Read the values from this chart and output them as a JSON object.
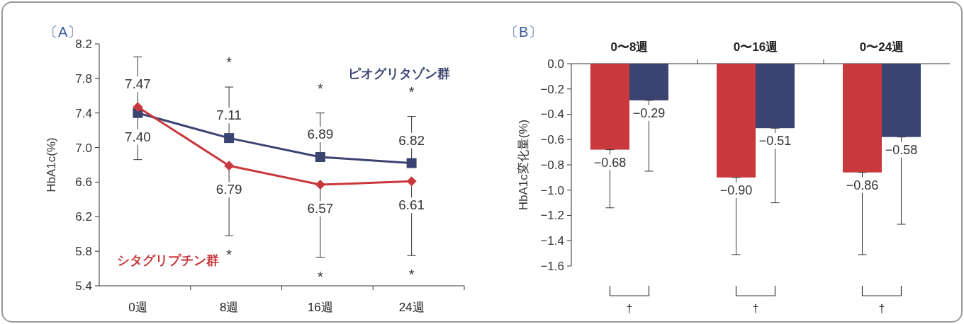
{
  "chart_data": [
    {
      "type": "line",
      "title": "〔A〕",
      "ylabel": "HbA1c(%)",
      "categories": [
        "0週",
        "8週",
        "16週",
        "24週"
      ],
      "ylim": [
        5.4,
        8.2
      ],
      "yticks": [
        5.4,
        5.8,
        6.2,
        6.6,
        {
          "value": 7,
          "label": "7.0"
        },
        7.4,
        7.8,
        8.2
      ],
      "grid": false,
      "legend": false,
      "series": [
        {
          "name": "ピオグリタゾン群",
          "color": "#3b4370",
          "marker": "square",
          "values": [
            7.4,
            7.11,
            6.89,
            6.82
          ],
          "value_labels": [
            "7.40",
            "7.11",
            "6.89",
            "6.82"
          ],
          "errors": [
            [
              7.4,
              8.05
            ],
            [
              7.11,
              7.7
            ],
            [
              6.89,
              7.4
            ],
            [
              6.82,
              7.36
            ]
          ]
        },
        {
          "name": "シタグリプチン群",
          "color": "#c8383c",
          "marker": "diamond",
          "values": [
            7.47,
            6.79,
            6.57,
            6.61
          ],
          "value_labels": [
            "7.47",
            "6.79",
            "6.57",
            "6.61"
          ],
          "errors": [
            [
              6.86,
              7.47
            ],
            [
              5.98,
              6.79
            ],
            [
              5.73,
              6.57
            ],
            [
              5.75,
              6.61
            ]
          ]
        }
      ],
      "annotations": [
        "*",
        "*",
        "*",
        "*",
        "*",
        "*"
      ]
    },
    {
      "type": "bar",
      "title": "〔B〕",
      "ylabel": "HbA1c変化量(%)",
      "categories": [
        "0〜8週",
        "0〜16週",
        "0〜24週"
      ],
      "ylim": [
        -1.6,
        0
      ],
      "yticks": [
        {
          "value": -1.6,
          "label": "−1.6"
        },
        {
          "value": -1.4,
          "label": "−1.4"
        },
        {
          "value": -1.2,
          "label": "−1.2"
        },
        {
          "value": -1.0,
          "label": "−1.0"
        },
        {
          "value": -0.8,
          "label": "−0.8"
        },
        {
          "value": -0.6,
          "label": "−0.6"
        },
        {
          "value": -0.4,
          "label": "−0.4"
        },
        {
          "value": -0.2,
          "label": "−0.2"
        },
        {
          "value": 0,
          "label": "0.0"
        }
      ],
      "grid": false,
      "legend": false,
      "series": [
        {
          "color": "#c8383c",
          "values": [
            -0.68,
            -0.9,
            -0.86
          ],
          "value_labels": [
            "−0.68",
            "−0.90",
            "−0.86"
          ],
          "errors": [
            [
              -1.14,
              -0.68
            ],
            [
              -1.51,
              -0.9
            ],
            [
              -1.51,
              -0.86
            ]
          ]
        },
        {
          "color": "#3b4370",
          "values": [
            -0.29,
            -0.51,
            -0.58
          ],
          "value_labels": [
            "−0.29",
            "−0.51",
            "−0.58"
          ],
          "errors": [
            [
              -0.85,
              -0.29
            ],
            [
              -1.1,
              -0.51
            ],
            [
              -1.27,
              -0.58
            ]
          ]
        }
      ],
      "annotations": [
        "†",
        "†",
        "†"
      ]
    }
  ]
}
